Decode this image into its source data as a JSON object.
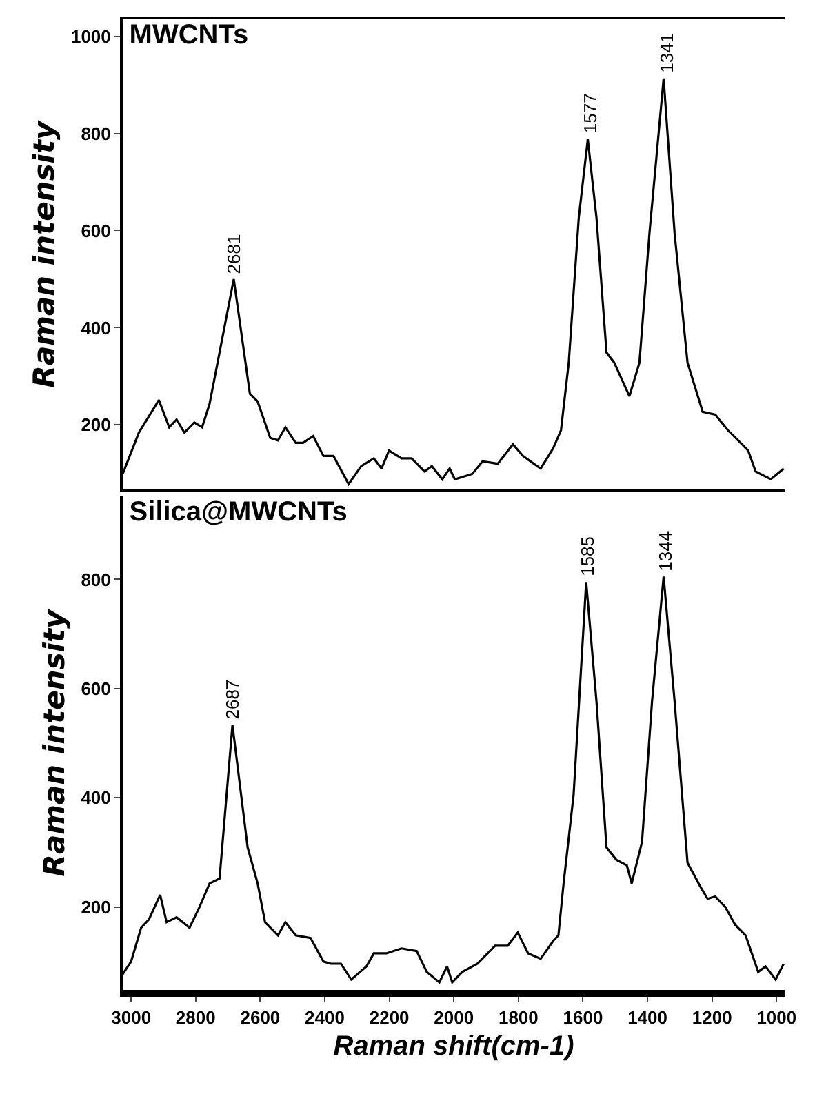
{
  "chart_data": [
    {
      "type": "line",
      "title": "MWCNTs",
      "ylabel": "Raman intensity",
      "tick_labels": "y",
      "color": "#000000",
      "x": [
        3026,
        2976,
        2914,
        2882,
        2859,
        2835,
        2804,
        2780,
        2757,
        2726,
        2682,
        2632,
        2608,
        2569,
        2545,
        2522,
        2490,
        2467,
        2436,
        2404,
        2373,
        2326,
        2287,
        2248,
        2224,
        2201,
        2162,
        2131,
        2091,
        2068,
        2036,
        2013,
        1997,
        1943,
        1911,
        1864,
        1817,
        1786,
        1731,
        1692,
        1668,
        1644,
        1613,
        1585,
        1558,
        1527,
        1503,
        1456,
        1425,
        1394,
        1350,
        1316,
        1276,
        1229,
        1190,
        1151,
        1119,
        1088,
        1065,
        1018,
        978
      ],
      "values": [
        99,
        184,
        251,
        195,
        211,
        184,
        205,
        195,
        243,
        349,
        500,
        264,
        248,
        173,
        168,
        195,
        163,
        163,
        177,
        136,
        136,
        78,
        115,
        131,
        110,
        147,
        131,
        131,
        104,
        115,
        88,
        110,
        88,
        99,
        125,
        120,
        160,
        136,
        110,
        152,
        189,
        328,
        626,
        788,
        626,
        349,
        328,
        259,
        328,
        594,
        913,
        594,
        328,
        227,
        221,
        189,
        168,
        147,
        104,
        88,
        110
      ],
      "xlim": [
        3026,
        975
      ],
      "xticks": [
        3000,
        2800,
        2600,
        2400,
        2200,
        2000,
        1800,
        1600,
        1400,
        1200,
        1000
      ],
      "ylim": [
        67,
        1035
      ],
      "yticks": [
        200,
        400,
        600,
        800,
        1000
      ],
      "annotations": [
        {
          "text": "2681",
          "x": 2681,
          "y": 500
        },
        {
          "text": "1577",
          "x": 1577,
          "y": 788
        },
        {
          "text": "1341",
          "x": 1341,
          "y": 913
        }
      ]
    },
    {
      "type": "line",
      "title": "Silica@MWCNTs",
      "ylabel": "Raman intensity",
      "xlabel": "Raman shift(cm-1)",
      "color": "#000000",
      "x": [
        3026,
        3000,
        2969,
        2945,
        2910,
        2890,
        2859,
        2819,
        2788,
        2757,
        2726,
        2686,
        2639,
        2608,
        2585,
        2545,
        2522,
        2490,
        2444,
        2404,
        2381,
        2350,
        2318,
        2271,
        2248,
        2209,
        2162,
        2115,
        2084,
        2045,
        2021,
        2005,
        1974,
        1927,
        1872,
        1833,
        1802,
        1770,
        1731,
        1692,
        1676,
        1660,
        1629,
        1590,
        1558,
        1527,
        1496,
        1464,
        1449,
        1417,
        1386,
        1350,
        1316,
        1276,
        1237,
        1214,
        1190,
        1159,
        1128,
        1096,
        1057,
        1034,
        1003,
        978
      ],
      "values": [
        77,
        100,
        162,
        177,
        222,
        172,
        181,
        162,
        200,
        243,
        252,
        533,
        309,
        243,
        172,
        148,
        172,
        148,
        143,
        100,
        96,
        96,
        67,
        91,
        115,
        115,
        124,
        119,
        81,
        62,
        91,
        62,
        81,
        96,
        129,
        129,
        153,
        115,
        105,
        138,
        148,
        243,
        405,
        795,
        576,
        309,
        286,
        276,
        243,
        319,
        576,
        805,
        576,
        281,
        238,
        215,
        219,
        200,
        167,
        148,
        81,
        91,
        67,
        96
      ],
      "xlim": [
        3026,
        975
      ],
      "xticks": [
        3000,
        2800,
        2600,
        2400,
        2200,
        2000,
        1800,
        1600,
        1400,
        1200,
        1000
      ],
      "ylim": [
        48,
        952
      ],
      "yticks": [
        200,
        400,
        600,
        800
      ],
      "annotations": [
        {
          "text": "2687",
          "x": 2687,
          "y": 533
        },
        {
          "text": "1585",
          "x": 1585,
          "y": 795
        },
        {
          "text": "1344",
          "x": 1344,
          "y": 805
        }
      ]
    }
  ]
}
